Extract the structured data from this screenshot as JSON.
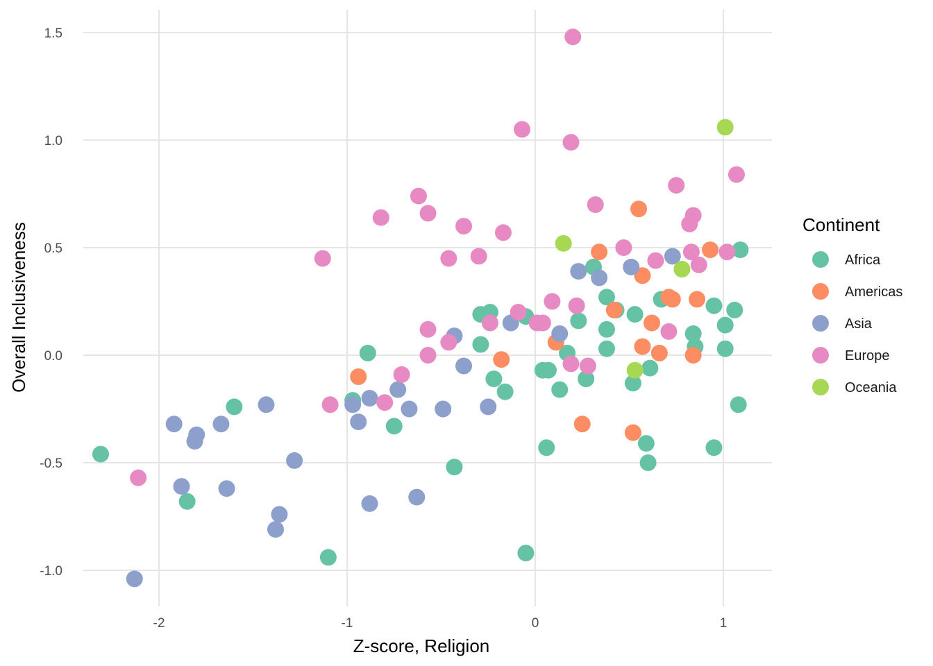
{
  "chart_data": {
    "type": "scatter",
    "title": "",
    "xlabel": "Z-score, Religion",
    "ylabel": "Overall Inclusiveness",
    "xlim": [
      -2.45,
      1.25
    ],
    "ylim": [
      -1.17,
      1.6
    ],
    "x_ticks": [
      -2,
      -1,
      0,
      1
    ],
    "x_tick_labels": [
      "-2",
      "-1",
      "0",
      "1"
    ],
    "y_ticks": [
      -1.0,
      -0.5,
      0.0,
      0.5,
      1.0,
      1.5
    ],
    "y_tick_labels": [
      "-1.0",
      "-0.5",
      "0.0",
      "0.5",
      "1.0",
      "1.5"
    ],
    "grid": true,
    "legend": {
      "title": "Continent",
      "placement": "right",
      "entries": [
        {
          "name": "Africa",
          "color": "#66c2a5"
        },
        {
          "name": "Americas",
          "color": "#fc8d62"
        },
        {
          "name": "Asia",
          "color": "#8da0cb"
        },
        {
          "name": "Europe",
          "color": "#e78ac3"
        },
        {
          "name": "Oceania",
          "color": "#a6d854"
        }
      ]
    },
    "series": [
      {
        "name": "Africa",
        "color": "#66c2a5",
        "points": [
          [
            -2.31,
            -0.46
          ],
          [
            -1.6,
            -0.24
          ],
          [
            -1.85,
            -0.68
          ],
          [
            -1.1,
            -0.94
          ],
          [
            -0.97,
            -0.21
          ],
          [
            -0.89,
            0.01
          ],
          [
            -0.75,
            -0.33
          ],
          [
            -0.43,
            -0.52
          ],
          [
            -0.29,
            0.19
          ],
          [
            -0.29,
            0.05
          ],
          [
            -0.24,
            0.2
          ],
          [
            -0.22,
            -0.11
          ],
          [
            -0.16,
            -0.17
          ],
          [
            -0.05,
            0.18
          ],
          [
            -0.05,
            -0.92
          ],
          [
            0.04,
            -0.07
          ],
          [
            0.07,
            -0.07
          ],
          [
            0.06,
            -0.43
          ],
          [
            0.13,
            -0.16
          ],
          [
            0.17,
            0.01
          ],
          [
            0.23,
            0.16
          ],
          [
            0.27,
            -0.11
          ],
          [
            0.31,
            0.41
          ],
          [
            0.38,
            0.27
          ],
          [
            0.38,
            0.12
          ],
          [
            0.38,
            0.03
          ],
          [
            0.43,
            0.21
          ],
          [
            0.53,
            0.19
          ],
          [
            0.52,
            -0.13
          ],
          [
            0.59,
            -0.41
          ],
          [
            0.61,
            -0.06
          ],
          [
            0.6,
            -0.5
          ],
          [
            0.67,
            0.26
          ],
          [
            0.84,
            0.1
          ],
          [
            0.85,
            0.04
          ],
          [
            0.95,
            0.23
          ],
          [
            0.95,
            -0.43
          ],
          [
            1.01,
            0.14
          ],
          [
            1.01,
            0.03
          ],
          [
            1.06,
            0.21
          ],
          [
            1.08,
            -0.23
          ],
          [
            1.09,
            0.49
          ]
        ]
      },
      {
        "name": "Americas",
        "color": "#fc8d62",
        "points": [
          [
            -0.94,
            -0.1
          ],
          [
            -0.18,
            -0.02
          ],
          [
            0.11,
            0.06
          ],
          [
            0.25,
            -0.32
          ],
          [
            0.34,
            0.48
          ],
          [
            0.42,
            0.21
          ],
          [
            0.52,
            -0.36
          ],
          [
            0.55,
            0.68
          ],
          [
            0.57,
            0.37
          ],
          [
            0.57,
            0.04
          ],
          [
            0.62,
            0.15
          ],
          [
            0.66,
            0.01
          ],
          [
            0.71,
            0.27
          ],
          [
            0.73,
            0.26
          ],
          [
            0.84,
            0.0
          ],
          [
            0.86,
            0.26
          ],
          [
            0.93,
            0.49
          ]
        ]
      },
      {
        "name": "Asia",
        "color": "#8da0cb",
        "points": [
          [
            -2.13,
            -1.04
          ],
          [
            -1.92,
            -0.32
          ],
          [
            -1.88,
            -0.61
          ],
          [
            -1.8,
            -0.37
          ],
          [
            -1.81,
            -0.4
          ],
          [
            -1.67,
            -0.32
          ],
          [
            -1.64,
            -0.62
          ],
          [
            -1.43,
            -0.23
          ],
          [
            -1.38,
            -0.81
          ],
          [
            -1.36,
            -0.74
          ],
          [
            -1.28,
            -0.49
          ],
          [
            -0.97,
            -0.23
          ],
          [
            -0.94,
            -0.31
          ],
          [
            -0.88,
            -0.2
          ],
          [
            -0.88,
            -0.69
          ],
          [
            -0.73,
            -0.16
          ],
          [
            -0.67,
            -0.25
          ],
          [
            -0.63,
            -0.66
          ],
          [
            -0.49,
            -0.25
          ],
          [
            -0.43,
            0.09
          ],
          [
            -0.38,
            -0.05
          ],
          [
            -0.25,
            -0.24
          ],
          [
            -0.13,
            0.15
          ],
          [
            0.13,
            0.1
          ],
          [
            0.23,
            0.39
          ],
          [
            0.34,
            0.36
          ],
          [
            0.51,
            0.41
          ],
          [
            0.73,
            0.46
          ]
        ]
      },
      {
        "name": "Europe",
        "color": "#e78ac3",
        "points": [
          [
            -2.11,
            -0.57
          ],
          [
            -1.13,
            0.45
          ],
          [
            -1.09,
            -0.23
          ],
          [
            -0.8,
            -0.22
          ],
          [
            -0.82,
            0.64
          ],
          [
            -0.71,
            -0.09
          ],
          [
            -0.62,
            0.74
          ],
          [
            -0.57,
            0.66
          ],
          [
            -0.57,
            0.0
          ],
          [
            -0.57,
            0.12
          ],
          [
            -0.46,
            0.45
          ],
          [
            -0.46,
            0.06
          ],
          [
            -0.38,
            0.6
          ],
          [
            -0.3,
            0.46
          ],
          [
            -0.24,
            0.15
          ],
          [
            -0.17,
            0.57
          ],
          [
            -0.09,
            0.2
          ],
          [
            -0.07,
            1.05
          ],
          [
            0.01,
            0.15
          ],
          [
            0.04,
            0.15
          ],
          [
            0.09,
            0.25
          ],
          [
            0.19,
            0.99
          ],
          [
            0.19,
            -0.04
          ],
          [
            0.2,
            1.48
          ],
          [
            0.22,
            0.23
          ],
          [
            0.28,
            -0.05
          ],
          [
            0.32,
            0.7
          ],
          [
            0.47,
            0.5
          ],
          [
            0.64,
            0.44
          ],
          [
            0.71,
            0.11
          ],
          [
            0.75,
            0.79
          ],
          [
            0.82,
            0.61
          ],
          [
            0.84,
            0.65
          ],
          [
            0.83,
            0.48
          ],
          [
            0.87,
            0.42
          ],
          [
            1.02,
            0.48
          ],
          [
            1.07,
            0.84
          ]
        ]
      },
      {
        "name": "Oceania",
        "color": "#a6d854",
        "points": [
          [
            0.15,
            0.52
          ],
          [
            0.53,
            -0.07
          ],
          [
            0.78,
            0.4
          ],
          [
            1.01,
            1.06
          ]
        ]
      }
    ]
  }
}
